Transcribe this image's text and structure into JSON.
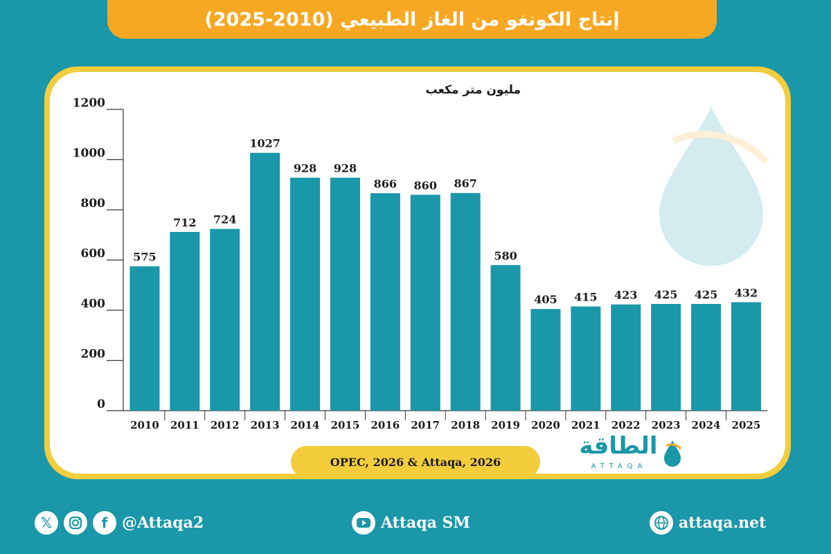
{
  "header": {
    "title": "إنتاج الكونغو من الغاز الطبيعي (2010-2025)"
  },
  "chart_data": {
    "type": "bar",
    "unit_label": "مليون متر مكعب",
    "categories": [
      "2010",
      "2011",
      "2012",
      "2013",
      "2014",
      "2015",
      "2016",
      "2017",
      "2018",
      "2019",
      "2020",
      "2021",
      "2022",
      "2023",
      "2024",
      "2025"
    ],
    "values": [
      575,
      712,
      724,
      1027,
      928,
      928,
      866,
      860,
      867,
      580,
      405,
      415,
      423,
      425,
      425,
      432
    ],
    "yticks": [
      "0",
      "200",
      "400",
      "600",
      "800",
      "1000",
      "1200"
    ],
    "ylim": [
      0,
      1200
    ],
    "grid": false,
    "bar_color": "#1a97a8"
  },
  "source": "OPEC, 2026 & Attaqa, 2026",
  "brand": {
    "arabic": "الطاقة",
    "latin": "ATTAQA"
  },
  "footer": {
    "social_handle": "@Attaqa2",
    "youtube": "Attaqa SM",
    "website": "attaqa.net",
    "icons": [
      "x-icon",
      "instagram-icon",
      "facebook-icon",
      "youtube-icon",
      "globe-icon"
    ]
  },
  "colors": {
    "background": "#1a97a8",
    "accent": "#f7a823",
    "frame": "#f3cd3c",
    "bar": "#1a97a8"
  }
}
